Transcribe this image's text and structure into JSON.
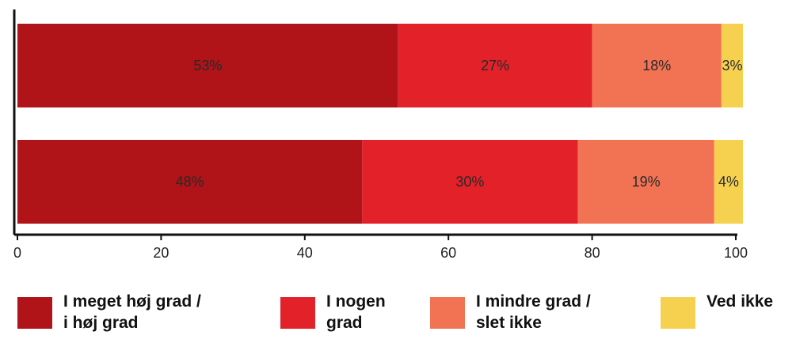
{
  "chart_data": {
    "type": "bar",
    "orientation": "horizontal",
    "stacked": true,
    "categories": [
      "",
      ""
    ],
    "series": [
      {
        "name": "I meget høj grad / i høj grad",
        "values": [
          53,
          48
        ],
        "labels": [
          "53%",
          "48%"
        ],
        "color": "#b01318"
      },
      {
        "name": "I nogen grad",
        "values": [
          27,
          30
        ],
        "labels": [
          "27%",
          "30%"
        ],
        "color": "#e32129"
      },
      {
        "name": "I mindre grad / slet ikke",
        "values": [
          18,
          19
        ],
        "labels": [
          "18%",
          "19%"
        ],
        "color": "#f27353"
      },
      {
        "name": "Ved ikke",
        "values": [
          3,
          4
        ],
        "labels": [
          "3%",
          "4%"
        ],
        "color": "#f6d14f"
      }
    ],
    "xlim": [
      0,
      100
    ],
    "xticks": [
      "0",
      "20",
      "40",
      "60",
      "80",
      "100"
    ],
    "grid": false,
    "legend_position": "bottom",
    "legend": [
      {
        "label_line1": "I meget høj grad /",
        "label_line2": "i høj grad",
        "color": "#b01318"
      },
      {
        "label_line1": "I nogen",
        "label_line2": "grad",
        "color": "#e32129"
      },
      {
        "label_line1": "I mindre grad /",
        "label_line2": "slet ikke",
        "color": "#f27353"
      },
      {
        "label_line1": "Ved ikke",
        "label_line2": "",
        "color": "#f6d14f"
      }
    ]
  }
}
